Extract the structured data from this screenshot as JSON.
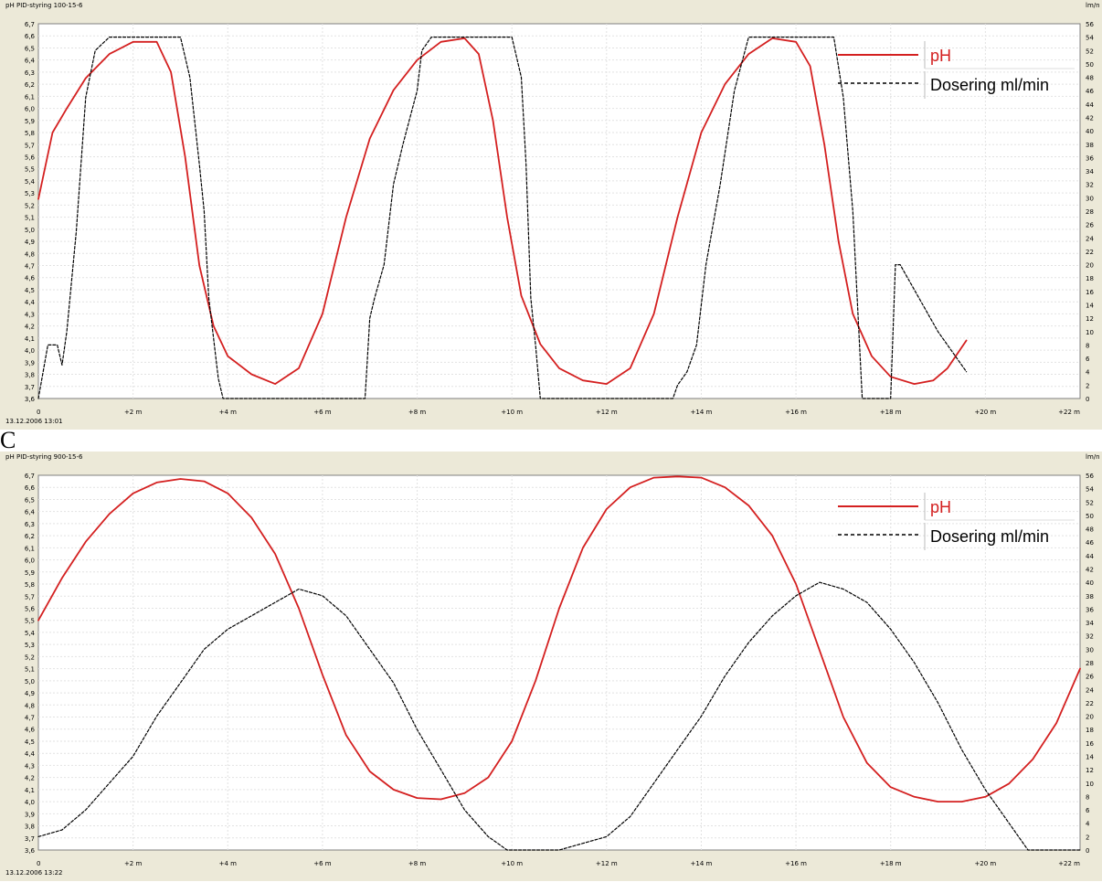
{
  "chart_data": [
    {
      "type": "line",
      "title": "PID-styring 100-15-6",
      "y_left_label": "pH",
      "y_right_label": "lm/n",
      "x_start_label": "13.12.2006 13:01",
      "x_unit": "minutes",
      "xlim": [
        0,
        22
      ],
      "ylim_left": [
        3.6,
        6.7
      ],
      "ylim_right": [
        0,
        56
      ],
      "x_ticks": [
        0,
        2,
        4,
        6,
        8,
        10,
        12,
        14,
        16,
        18,
        20,
        22
      ],
      "x_tick_labels": [
        "0",
        "+2 m",
        "+4 m",
        "+6 m",
        "+8 m",
        "+10 m",
        "+12 m",
        "+14 m",
        "+16 m",
        "+18 m",
        "+20 m",
        "+22 m"
      ],
      "y_left_ticks": [
        "3,6",
        "3,7",
        "3,8",
        "3,9",
        "4,0",
        "4,1",
        "4,2",
        "4,3",
        "4,4",
        "4,5",
        "4,6",
        "4,7",
        "4,8",
        "4,9",
        "5,0",
        "5,1",
        "5,2",
        "5,3",
        "5,4",
        "5,5",
        "5,6",
        "5,7",
        "5,8",
        "5,9",
        "6,0",
        "6,1",
        "6,2",
        "6,3",
        "6,4",
        "6,5",
        "6,6",
        "6,7"
      ],
      "y_right_ticks": [
        "0",
        "2",
        "4",
        "6",
        "8",
        "10",
        "12",
        "14",
        "16",
        "18",
        "20",
        "22",
        "24",
        "26",
        "28",
        "30",
        "32",
        "34",
        "36",
        "38",
        "40",
        "42",
        "44",
        "46",
        "48",
        "50",
        "52",
        "54",
        "56"
      ],
      "legend": {
        "position": "top-right",
        "entries": [
          "pH",
          "Dosering ml/min"
        ]
      },
      "series": [
        {
          "name": "pH",
          "axis": "left",
          "color": "#d42020",
          "style": "solid",
          "x": [
            0,
            0.3,
            0.6,
            1.0,
            1.5,
            2.0,
            2.5,
            2.8,
            3.1,
            3.4,
            3.7,
            4.0,
            4.5,
            5.0,
            5.5,
            6.0,
            6.5,
            7.0,
            7.5,
            8.0,
            8.5,
            9.0,
            9.3,
            9.6,
            9.9,
            10.2,
            10.6,
            11.0,
            11.5,
            12.0,
            12.5,
            13.0,
            13.5,
            14.0,
            14.5,
            15.0,
            15.5,
            16.0,
            16.3,
            16.6,
            16.9,
            17.2,
            17.6,
            18.0,
            18.5,
            18.9,
            19.2,
            19.6
          ],
          "values": [
            5.25,
            5.8,
            6.0,
            6.25,
            6.45,
            6.55,
            6.55,
            6.3,
            5.6,
            4.7,
            4.2,
            3.95,
            3.8,
            3.72,
            3.85,
            4.3,
            5.1,
            5.75,
            6.15,
            6.4,
            6.55,
            6.58,
            6.45,
            5.9,
            5.1,
            4.45,
            4.05,
            3.85,
            3.75,
            3.72,
            3.85,
            4.3,
            5.1,
            5.8,
            6.2,
            6.45,
            6.58,
            6.55,
            6.35,
            5.7,
            4.9,
            4.3,
            3.95,
            3.78,
            3.72,
            3.75,
            3.85,
            4.08
          ]
        },
        {
          "name": "Dosering ml/min",
          "axis": "right",
          "color": "#000000",
          "style": "dashed",
          "x": [
            0,
            0.1,
            0.2,
            0.4,
            0.5,
            0.6,
            0.8,
            1.0,
            1.2,
            1.5,
            1.8,
            2.2,
            2.7,
            3.0,
            3.2,
            3.4,
            3.5,
            3.6,
            3.8,
            3.9,
            6.9,
            7.0,
            7.1,
            7.3,
            7.5,
            7.7,
            8.0,
            8.1,
            8.3,
            8.5,
            9.0,
            9.5,
            9.8,
            10.0,
            10.2,
            10.3,
            10.4,
            10.5,
            10.6,
            13.4,
            13.5,
            13.7,
            13.9,
            14.1,
            14.4,
            14.7,
            15.0,
            15.5,
            16.0,
            16.5,
            16.8,
            17.0,
            17.2,
            17.4,
            18.0,
            18.1,
            18.2,
            18.6,
            19.0,
            19.3,
            19.6
          ],
          "values": [
            0,
            4,
            8,
            8,
            5,
            10,
            25,
            45,
            52,
            54,
            54,
            54,
            54,
            54,
            48,
            35,
            28,
            15,
            3,
            0,
            0,
            12,
            15,
            20,
            32,
            38,
            46,
            52,
            54,
            54,
            54,
            54,
            54,
            54,
            48,
            35,
            15,
            8,
            0,
            0,
            2,
            4,
            8,
            20,
            32,
            46,
            54,
            54,
            54,
            54,
            54,
            45,
            28,
            0,
            0,
            20,
            20,
            15,
            10,
            7,
            4
          ]
        }
      ]
    },
    {
      "type": "line",
      "title": "PID-styring 900-15-6",
      "y_left_label": "pH",
      "y_right_label": "lm/n",
      "x_start_label": "13.12.2006 13:22",
      "x_unit": "minutes",
      "xlim": [
        0,
        22
      ],
      "ylim_left": [
        3.6,
        6.7
      ],
      "ylim_right": [
        0,
        56
      ],
      "x_ticks": [
        0,
        2,
        4,
        6,
        8,
        10,
        12,
        14,
        16,
        18,
        20,
        22
      ],
      "x_tick_labels": [
        "0",
        "+2 m",
        "+4 m",
        "+6 m",
        "+8 m",
        "+10 m",
        "+12 m",
        "+14 m",
        "+16 m",
        "+18 m",
        "+20 m",
        "+22 m"
      ],
      "y_left_ticks": [
        "3,6",
        "3,7",
        "3,8",
        "3,9",
        "4,0",
        "4,1",
        "4,2",
        "4,3",
        "4,4",
        "4,5",
        "4,6",
        "4,7",
        "4,8",
        "4,9",
        "5,0",
        "5,1",
        "5,2",
        "5,3",
        "5,4",
        "5,5",
        "5,6",
        "5,7",
        "5,8",
        "5,9",
        "6,0",
        "6,1",
        "6,2",
        "6,3",
        "6,4",
        "6,5",
        "6,6",
        "6,7"
      ],
      "y_right_ticks": [
        "0",
        "2",
        "4",
        "6",
        "8",
        "10",
        "12",
        "14",
        "16",
        "18",
        "20",
        "22",
        "24",
        "26",
        "28",
        "30",
        "32",
        "34",
        "36",
        "38",
        "40",
        "42",
        "44",
        "46",
        "48",
        "50",
        "52",
        "54",
        "56"
      ],
      "legend": {
        "position": "top-right",
        "entries": [
          "pH",
          "Dosering ml/min"
        ]
      },
      "series": [
        {
          "name": "pH",
          "axis": "left",
          "color": "#d42020",
          "style": "solid",
          "x": [
            0,
            0.5,
            1.0,
            1.5,
            2.0,
            2.5,
            3.0,
            3.5,
            4.0,
            4.5,
            5.0,
            5.5,
            6.0,
            6.5,
            7.0,
            7.5,
            8.0,
            8.5,
            9.0,
            9.5,
            10.0,
            10.5,
            11.0,
            11.5,
            12.0,
            12.5,
            13.0,
            13.5,
            14.0,
            14.5,
            15.0,
            15.5,
            16.0,
            16.5,
            17.0,
            17.5,
            18.0,
            18.5,
            19.0,
            19.5,
            20.0,
            20.5,
            21.0,
            21.5,
            22.0
          ],
          "values": [
            5.5,
            5.85,
            6.15,
            6.38,
            6.55,
            6.64,
            6.67,
            6.65,
            6.55,
            6.35,
            6.05,
            5.6,
            5.05,
            4.55,
            4.25,
            4.1,
            4.03,
            4.02,
            4.07,
            4.2,
            4.5,
            5.0,
            5.6,
            6.1,
            6.42,
            6.6,
            6.68,
            6.69,
            6.68,
            6.6,
            6.45,
            6.2,
            5.8,
            5.25,
            4.7,
            4.32,
            4.12,
            4.04,
            4.0,
            4.0,
            4.04,
            4.15,
            4.35,
            4.65,
            5.1
          ]
        },
        {
          "name": "Dosering ml/min",
          "axis": "right",
          "color": "#000000",
          "style": "dashed",
          "x": [
            0,
            0.5,
            1.0,
            1.5,
            2.0,
            2.5,
            3.0,
            3.5,
            4.0,
            4.5,
            5.0,
            5.5,
            6.0,
            6.5,
            7.0,
            7.5,
            8.0,
            8.5,
            9.0,
            9.5,
            9.9,
            10.5,
            11.0,
            11.5,
            12.0,
            12.5,
            13.0,
            13.5,
            14.0,
            14.5,
            15.0,
            15.5,
            16.0,
            16.5,
            17.0,
            17.5,
            18.0,
            18.5,
            19.0,
            19.5,
            20.0,
            20.5,
            20.9,
            21.5,
            22.0
          ],
          "values": [
            2,
            3,
            6,
            10,
            14,
            20,
            25,
            30,
            33,
            35,
            37,
            39,
            38,
            35,
            30,
            25,
            18,
            12,
            6,
            2,
            0,
            0,
            0,
            1,
            2,
            5,
            10,
            15,
            20,
            26,
            31,
            35,
            38,
            40,
            39,
            37,
            33,
            28,
            22,
            15,
            9,
            4,
            0,
            0,
            0
          ]
        }
      ]
    }
  ],
  "panel_letter": "C"
}
